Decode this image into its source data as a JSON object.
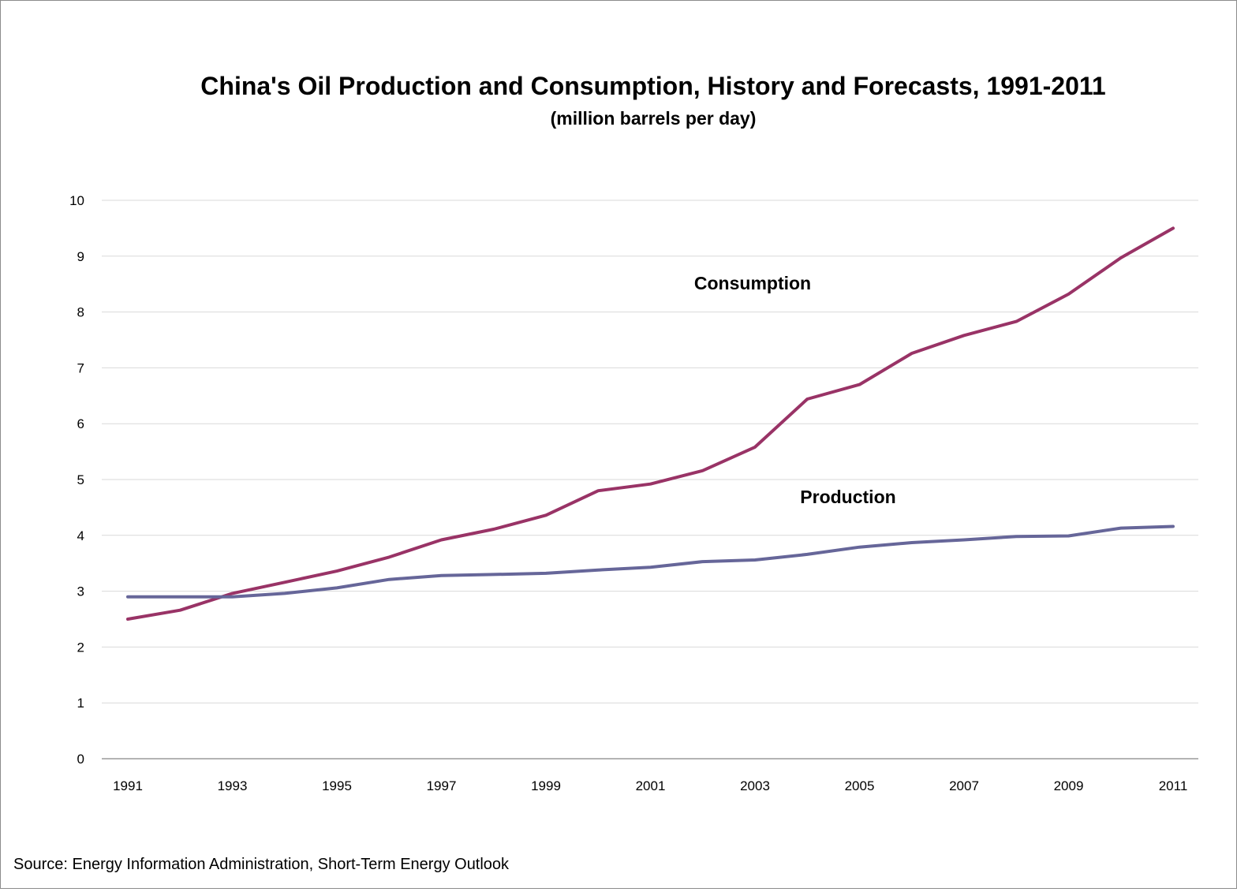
{
  "chart_data": {
    "type": "line",
    "title": "China's Oil Production and Consumption, History and Forecasts, 1991-2011",
    "subtitle": "(million barrels per day)",
    "xlabel": "",
    "ylabel": "",
    "x": [
      1991,
      1992,
      1993,
      1994,
      1995,
      1996,
      1997,
      1998,
      1999,
      2000,
      2001,
      2002,
      2003,
      2004,
      2005,
      2006,
      2007,
      2008,
      2009,
      2010,
      2011
    ],
    "x_tick_labels": [
      "1991",
      "1993",
      "1995",
      "1997",
      "1999",
      "2001",
      "2003",
      "2005",
      "2007",
      "2009",
      "2011"
    ],
    "y_tick_labels": [
      "0",
      "1",
      "2",
      "3",
      "4",
      "5",
      "6",
      "7",
      "8",
      "9",
      "10"
    ],
    "ylim": [
      0,
      10
    ],
    "grid": true,
    "legend": "none",
    "series": [
      {
        "name": "Consumption",
        "color": "#993366",
        "values": [
          2.5,
          2.66,
          2.96,
          3.16,
          3.36,
          3.61,
          3.92,
          4.11,
          4.36,
          4.8,
          4.92,
          5.16,
          5.58,
          6.44,
          6.7,
          7.26,
          7.58,
          7.83,
          8.32,
          8.97,
          9.5
        ]
      },
      {
        "name": "Production",
        "color": "#666699",
        "values": [
          2.9,
          2.9,
          2.9,
          2.96,
          3.06,
          3.21,
          3.28,
          3.3,
          3.32,
          3.38,
          3.43,
          3.53,
          3.56,
          3.66,
          3.79,
          3.87,
          3.92,
          3.98,
          3.99,
          4.13,
          4.16
        ]
      }
    ],
    "source": "Source: Energy Information Administration, Short-Term Energy Outlook"
  }
}
